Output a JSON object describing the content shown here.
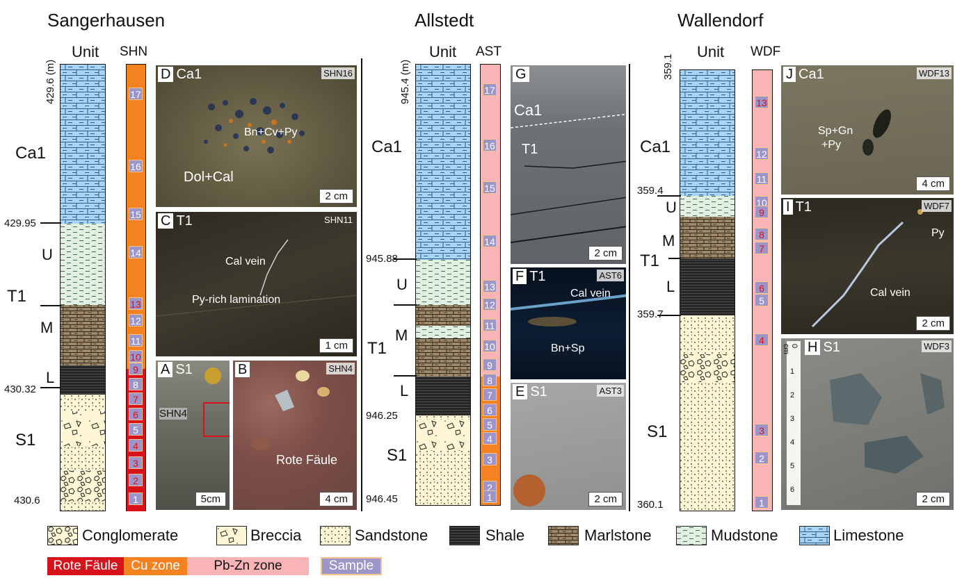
{
  "sections": [
    {
      "title": "Sangerhausen",
      "unit_header": "Unit",
      "code": "SHN",
      "depths": [
        "429.6 (m)",
        "429.95",
        "430.32",
        "430.6"
      ],
      "units": {
        "ca1": "Ca1",
        "t1": "T1",
        "s1": "S1",
        "u": "U",
        "m": "M",
        "l": "L"
      },
      "samples": [
        "17",
        "16",
        "15",
        "14",
        "13",
        "12",
        "11",
        "10",
        "9",
        "8",
        "7",
        "6",
        "5",
        "4",
        "3",
        "2",
        "1"
      ]
    },
    {
      "title": "Allstedt",
      "unit_header": "Unit",
      "code": "AST",
      "depths": [
        "945.4 (m)",
        "945.88",
        "946.25",
        "946.45"
      ],
      "units": {
        "ca1": "Ca1",
        "t1": "T1",
        "s1": "S1",
        "u": "U",
        "m": "M",
        "l": "L"
      },
      "samples": [
        "17",
        "16",
        "15",
        "14",
        "13",
        "12",
        "11",
        "10",
        "9",
        "8",
        "7",
        "6",
        "5",
        "4",
        "3",
        "2",
        "1"
      ]
    },
    {
      "title": "Wallendorf",
      "unit_header": "Unit",
      "code": "WDF",
      "depths": [
        "359.1",
        "359.4",
        "359.7",
        "360.1"
      ],
      "units": {
        "ca1": "Ca1",
        "t1": "T1",
        "s1": "S1",
        "u": "U",
        "m": "M",
        "l": "L"
      },
      "samples": [
        "13",
        "12",
        "11",
        "10",
        "9",
        "8",
        "7",
        "6",
        "5",
        "4",
        "3",
        "2",
        "1"
      ]
    }
  ],
  "photos": {
    "D": {
      "letter": "D",
      "unit": "Ca1",
      "code": "SHN16",
      "scale": "2 cm",
      "notes": [
        "Bn+Cv+Py",
        "Dol+Cal"
      ]
    },
    "C": {
      "letter": "C",
      "unit": "T1",
      "code": "SHN11",
      "scale": "1 cm",
      "notes": [
        "Cal vein",
        "Py-rich lamination"
      ]
    },
    "A": {
      "letter": "A",
      "unit": "S1",
      "code": "SHN4",
      "scale": "5cm",
      "notes": []
    },
    "B": {
      "letter": "B",
      "unit": "",
      "code": "SHN4",
      "scale": "4 cm",
      "notes": [
        "Rote Fäule"
      ]
    },
    "G": {
      "letter": "G",
      "unit": "Ca1",
      "code": "",
      "scale": "2 cm",
      "notes": [
        "T1"
      ]
    },
    "F": {
      "letter": "F",
      "unit": "T1",
      "code": "AST6",
      "scale": "",
      "notes": [
        "Cal vein",
        "Bn+Sp"
      ]
    },
    "E": {
      "letter": "E",
      "unit": "S1",
      "code": "AST3",
      "scale": "2 cm",
      "notes": []
    },
    "J": {
      "letter": "J",
      "unit": "Ca1",
      "code": "WDF13",
      "scale": "4 cm",
      "notes": [
        "Sp+Gn",
        "+Py"
      ]
    },
    "I": {
      "letter": "I",
      "unit": "T1",
      "code": "WDF7",
      "scale": "2 cm",
      "notes": [
        "Py",
        "Cal vein"
      ]
    },
    "H": {
      "letter": "H",
      "unit": "S1",
      "code": "WDF3",
      "scale": "2 cm",
      "notes": [
        "0 cm",
        "1",
        "2",
        "3",
        "4",
        "5",
        "6"
      ]
    }
  },
  "legend": {
    "lithology": [
      "Conglomerate",
      "Breccia",
      "Sandstone",
      "Shale",
      "Marlstone",
      "Mudstone",
      "Limestone"
    ],
    "zones": [
      "Rote Fäule",
      "Cu zone",
      "Pb-Zn zone",
      "Sample"
    ]
  },
  "colors": {
    "limestone": "#a8d4f5",
    "mudstone": "#e4efe4",
    "marlstone": "#9e8a6a",
    "shale": "#2a2a2a",
    "sandstone": "#fff6d6",
    "rote_faule": "#d8121b",
    "cu_zone": "#f58220",
    "pbzn_zone": "#f9b4b6",
    "sample": "#9b95c9"
  }
}
